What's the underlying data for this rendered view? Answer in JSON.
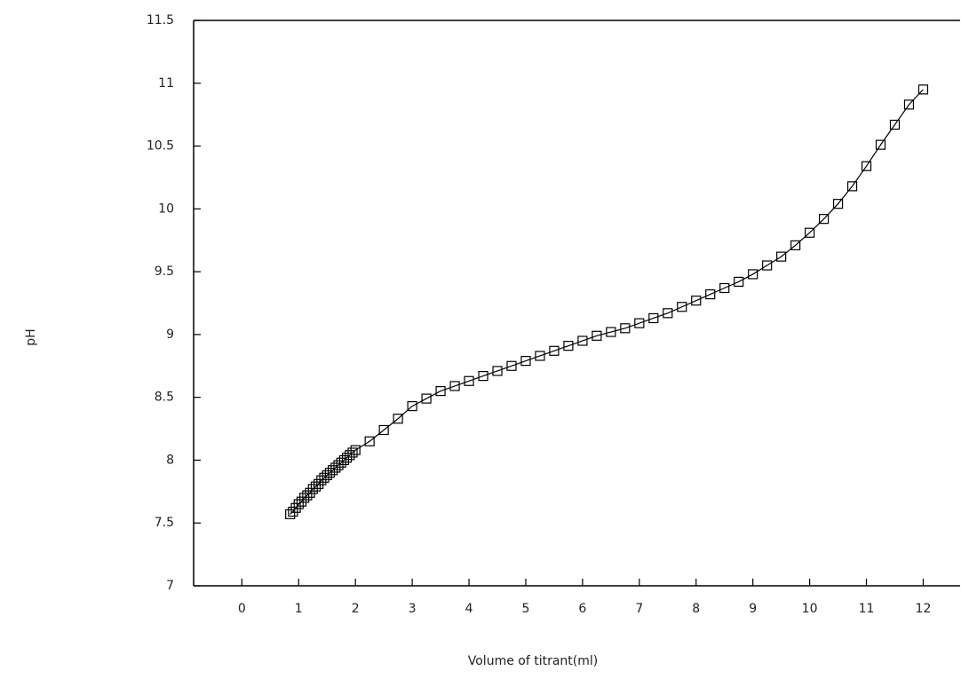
{
  "chart_data": {
    "type": "line",
    "xlabel": "Volume of titrant(ml)",
    "ylabel": "pH",
    "x": [
      0.85,
      0.9,
      0.95,
      1.0,
      1.05,
      1.1,
      1.15,
      1.2,
      1.25,
      1.3,
      1.35,
      1.4,
      1.45,
      1.5,
      1.55,
      1.6,
      1.65,
      1.7,
      1.75,
      1.8,
      1.85,
      1.9,
      1.95,
      2.0,
      2.25,
      2.5,
      2.75,
      3.0,
      3.25,
      3.5,
      3.75,
      4.0,
      4.25,
      4.5,
      4.75,
      5.0,
      5.25,
      5.5,
      5.75,
      6.0,
      6.25,
      6.5,
      6.75,
      7.0,
      7.25,
      7.5,
      7.75,
      8.0,
      8.25,
      8.5,
      8.75,
      9.0,
      9.25,
      9.5,
      9.75,
      10.0,
      10.25,
      10.5,
      10.75,
      11.0,
      11.25,
      11.5,
      11.75,
      12.0
    ],
    "values": [
      7.57,
      7.59,
      7.62,
      7.65,
      7.67,
      7.7,
      7.72,
      7.74,
      7.77,
      7.79,
      7.81,
      7.84,
      7.86,
      7.88,
      7.9,
      7.92,
      7.94,
      7.96,
      7.98,
      8.0,
      8.02,
      8.04,
      8.06,
      8.08,
      8.15,
      8.24,
      8.33,
      8.43,
      8.49,
      8.55,
      8.59,
      8.63,
      8.67,
      8.71,
      8.75,
      8.79,
      8.83,
      8.87,
      8.91,
      8.95,
      8.99,
      9.02,
      9.05,
      9.09,
      9.13,
      9.17,
      9.22,
      9.27,
      9.32,
      9.37,
      9.42,
      9.48,
      9.55,
      9.62,
      9.71,
      9.81,
      9.92,
      10.04,
      10.18,
      10.34,
      10.51,
      10.67,
      10.83,
      10.95
    ],
    "color": "#000000",
    "marker": "square",
    "xlim": [
      -0.85,
      12.65
    ],
    "xticks": [
      0,
      1,
      2,
      3,
      4,
      5,
      6,
      7,
      8,
      9,
      10,
      11,
      12
    ],
    "ylim": [
      7,
      11.5
    ],
    "yticks": [
      7,
      7.5,
      8,
      8.5,
      9,
      9.5,
      10,
      10.5,
      11,
      11.5
    ]
  }
}
